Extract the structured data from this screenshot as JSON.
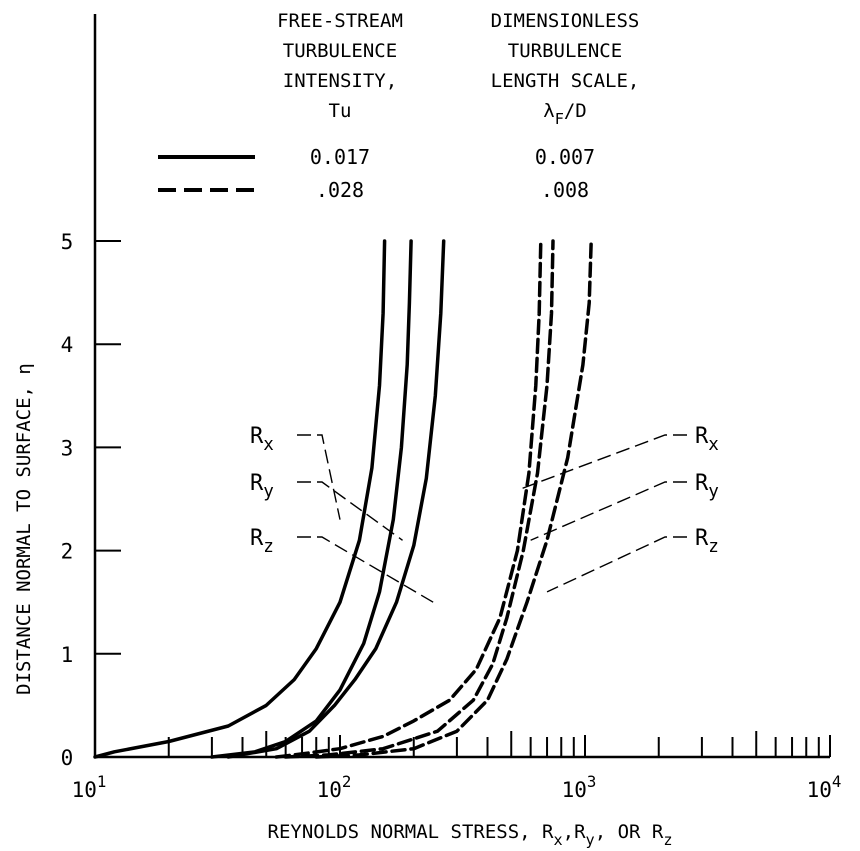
{
  "chart_data": {
    "type": "line",
    "xscale": "log",
    "xlim": [
      10,
      10000
    ],
    "ylim": [
      0,
      5
    ],
    "xlabel": "REYNOLDS NORMAL STRESS, R",
    "xlabel_subs": [
      "x",
      "y",
      "z"
    ],
    "xlabel_seps": [
      ",",
      ", OR "
    ],
    "xlabel_sub_letter": "R",
    "ylabel": "DISTANCE NORMAL TO SURFACE, η",
    "x_ticks": [
      {
        "value": 10,
        "base": "10",
        "exp": "1"
      },
      {
        "value": 100,
        "base": "10",
        "exp": "2"
      },
      {
        "value": 1000,
        "base": "10",
        "exp": "3"
      },
      {
        "value": 10000,
        "base": "10",
        "exp": "4"
      }
    ],
    "y_ticks": [
      {
        "value": 0,
        "label": "0"
      },
      {
        "value": 1,
        "label": "1"
      },
      {
        "value": 2,
        "label": "2"
      },
      {
        "value": 3,
        "label": "3"
      },
      {
        "value": 4,
        "label": "4"
      },
      {
        "value": 5,
        "label": "5"
      }
    ],
    "legend": {
      "col1_header": [
        "FREE-STREAM",
        "TURBULENCE",
        "INTENSITY,",
        "Tu"
      ],
      "col2_header": [
        "DIMENSIONLESS",
        "TURBULENCE",
        "LENGTH SCALE,"
      ],
      "col2_symbol_main": "λ",
      "col2_symbol_sub": "F",
      "col2_symbol_rest": "/D",
      "entries": [
        {
          "style": "solid",
          "tu": "0.017",
          "length_scale": "0.007"
        },
        {
          "style": "dashed",
          "tu": ".028",
          "length_scale": ".008"
        }
      ]
    },
    "series": [
      {
        "style": "solid",
        "component": "x",
        "points": [
          [
            10,
            0
          ],
          [
            12,
            0.05
          ],
          [
            20,
            0.15
          ],
          [
            35,
            0.3
          ],
          [
            50,
            0.5
          ],
          [
            65,
            0.75
          ],
          [
            80,
            1.05
          ],
          [
            100,
            1.5
          ],
          [
            120,
            2.1
          ],
          [
            135,
            2.8
          ],
          [
            145,
            3.6
          ],
          [
            150,
            4.3
          ],
          [
            152,
            5.0
          ]
        ]
      },
      {
        "style": "solid",
        "component": "y",
        "points": [
          [
            30,
            0
          ],
          [
            45,
            0.05
          ],
          [
            60,
            0.15
          ],
          [
            80,
            0.35
          ],
          [
            100,
            0.65
          ],
          [
            125,
            1.1
          ],
          [
            145,
            1.6
          ],
          [
            165,
            2.3
          ],
          [
            178,
            3.0
          ],
          [
            188,
            3.8
          ],
          [
            192,
            4.4
          ],
          [
            195,
            5.0
          ]
        ]
      },
      {
        "style": "solid",
        "component": "z",
        "points": [
          [
            35,
            0
          ],
          [
            55,
            0.08
          ],
          [
            75,
            0.25
          ],
          [
            95,
            0.5
          ],
          [
            115,
            0.75
          ],
          [
            140,
            1.05
          ],
          [
            170,
            1.5
          ],
          [
            200,
            2.05
          ],
          [
            225,
            2.7
          ],
          [
            245,
            3.5
          ],
          [
            258,
            4.3
          ],
          [
            265,
            5.0
          ]
        ]
      },
      {
        "style": "dashed",
        "component": "x",
        "points": [
          [
            55,
            0
          ],
          [
            70,
            0.03
          ],
          [
            100,
            0.08
          ],
          [
            150,
            0.2
          ],
          [
            200,
            0.35
          ],
          [
            280,
            0.55
          ],
          [
            360,
            0.85
          ],
          [
            450,
            1.35
          ],
          [
            530,
            2.0
          ],
          [
            590,
            2.75
          ],
          [
            630,
            3.6
          ],
          [
            650,
            4.3
          ],
          [
            660,
            5.0
          ]
        ]
      },
      {
        "style": "dashed",
        "component": "y",
        "points": [
          [
            60,
            0
          ],
          [
            90,
            0.02
          ],
          [
            150,
            0.08
          ],
          [
            250,
            0.25
          ],
          [
            350,
            0.55
          ],
          [
            420,
            0.9
          ],
          [
            480,
            1.35
          ],
          [
            560,
            2.0
          ],
          [
            640,
            2.75
          ],
          [
            700,
            3.6
          ],
          [
            730,
            4.3
          ],
          [
            740,
            5.0
          ]
        ]
      },
      {
        "style": "dashed",
        "component": "z",
        "points": [
          [
            80,
            0
          ],
          [
            120,
            0.02
          ],
          [
            200,
            0.08
          ],
          [
            300,
            0.25
          ],
          [
            400,
            0.55
          ],
          [
            480,
            0.95
          ],
          [
            580,
            1.5
          ],
          [
            700,
            2.1
          ],
          [
            850,
            2.9
          ],
          [
            980,
            3.8
          ],
          [
            1040,
            4.4
          ],
          [
            1060,
            5.0
          ]
        ]
      }
    ],
    "annotations_left": [
      {
        "base": "R",
        "sub": "x",
        "target": [
          100,
          2.3
        ]
      },
      {
        "base": "R",
        "sub": "y",
        "target": [
          180,
          2.1
        ]
      },
      {
        "base": "R",
        "sub": "z",
        "target": [
          240,
          1.5
        ]
      }
    ],
    "annotations_right": [
      {
        "base": "R",
        "sub": "x",
        "target": [
          550,
          2.6
        ]
      },
      {
        "base": "R",
        "sub": "y",
        "target": [
          600,
          2.1
        ]
      },
      {
        "base": "R",
        "sub": "z",
        "target": [
          700,
          1.6
        ]
      }
    ],
    "grid": false
  }
}
